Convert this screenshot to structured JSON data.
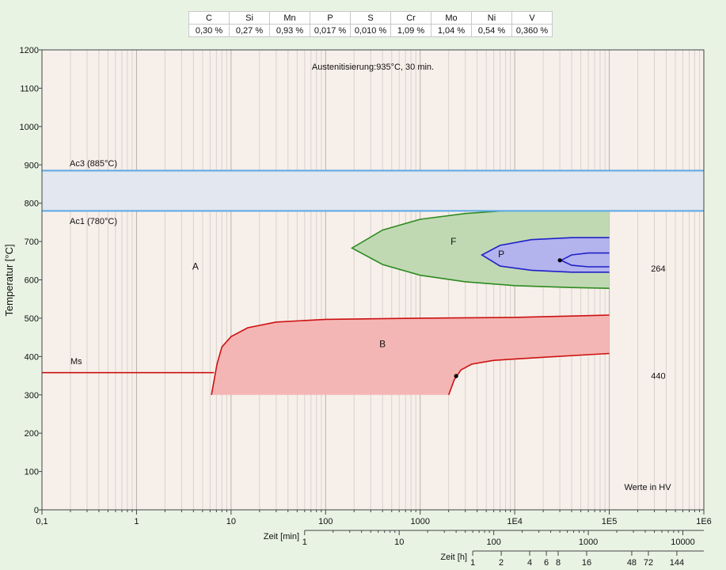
{
  "composition": {
    "elements": [
      "C",
      "Si",
      "Mn",
      "P",
      "S",
      "Cr",
      "Mo",
      "Ni",
      "V"
    ],
    "values": [
      "0,30 %",
      "0,27 %",
      "0,93 %",
      "0,017 %",
      "0,010 %",
      "1,09 %",
      "1,04 %",
      "0,54 %",
      "0,360 %"
    ]
  },
  "chart_data": {
    "type": "line",
    "title": "Austenitisierung:935°C, 30 min.",
    "ylabel": "Temperatur [°C]",
    "ylim": [
      0,
      1200
    ],
    "yticks": [
      "0",
      "100",
      "200",
      "300",
      "400",
      "500",
      "600",
      "700",
      "800",
      "900",
      "1000",
      "1100",
      "1200"
    ],
    "xscale": "log",
    "xlim": [
      0.1,
      1000000
    ],
    "xticks": [
      {
        "v": 0.1,
        "label": "0,1"
      },
      {
        "v": 1,
        "label": "1"
      },
      {
        "v": 10,
        "label": "10"
      },
      {
        "v": 100,
        "label": "100"
      },
      {
        "v": 1000,
        "label": "1000"
      },
      {
        "v": 10000,
        "label": "1E4"
      },
      {
        "v": 100000,
        "label": "1E5"
      },
      {
        "v": 1000000,
        "label": "1E6"
      }
    ],
    "min_axis": {
      "label": "Zeit [min]",
      "ticks": [
        {
          "v": 1,
          "label": "1"
        },
        {
          "v": 10,
          "label": "10"
        },
        {
          "v": 100,
          "label": "100"
        },
        {
          "v": 1000,
          "label": "1000"
        },
        {
          "v": 10000,
          "label": "10000"
        }
      ]
    },
    "hour_axis": {
      "label": "Zeit [h]",
      "ticks": [
        {
          "v": 1,
          "label": "1"
        },
        {
          "v": 2,
          "label": "2"
        },
        {
          "v": 4,
          "label": "4"
        },
        {
          "v": 6,
          "label": "6"
        },
        {
          "v": 8,
          "label": "8"
        },
        {
          "v": 16,
          "label": "16"
        },
        {
          "v": 48,
          "label": "48"
        },
        {
          "v": 72,
          "label": "72"
        },
        {
          "v": 144,
          "label": "144"
        }
      ]
    },
    "lines": {
      "ac3": {
        "label": "Ac3 (885°C)",
        "temp": 885
      },
      "ac1": {
        "label": "Ac1 (780°C)",
        "temp": 780
      },
      "ms": {
        "label": "Ms",
        "temp": 358
      }
    },
    "regions": {
      "A": {
        "label": "A",
        "x": 4.2,
        "y": 635
      },
      "F": {
        "label": "F",
        "x": 2250,
        "y": 700
      },
      "P": {
        "label": "P",
        "x": 7200,
        "y": 667
      },
      "B": {
        "label": "B",
        "x": 400,
        "y": 433
      }
    },
    "ferrite": {
      "color": "#2e8b20",
      "fill": "#c0d9b3",
      "upper": [
        [
          190,
          683
        ],
        [
          400,
          730
        ],
        [
          1000,
          758
        ],
        [
          3000,
          773
        ],
        [
          10000,
          782
        ],
        [
          40000,
          787
        ],
        [
          100000,
          788
        ]
      ],
      "lower": [
        [
          190,
          683
        ],
        [
          400,
          640
        ],
        [
          1000,
          612
        ],
        [
          3000,
          595
        ],
        [
          10000,
          585
        ],
        [
          40000,
          580
        ],
        [
          100000,
          578
        ]
      ]
    },
    "pearlite": {
      "color": "#2020c8",
      "fill": "#b3b3ee",
      "outer_upper": [
        [
          4500,
          665
        ],
        [
          7000,
          690
        ],
        [
          15000,
          705
        ],
        [
          40000,
          710
        ],
        [
          100000,
          710
        ]
      ],
      "outer_lower": [
        [
          4500,
          665
        ],
        [
          7000,
          636
        ],
        [
          15000,
          625
        ],
        [
          40000,
          620
        ],
        [
          100000,
          620
        ]
      ],
      "inner_upper": [
        [
          31000,
          651
        ],
        [
          40000,
          665
        ],
        [
          60000,
          670
        ],
        [
          100000,
          670
        ]
      ],
      "inner_lower": [
        [
          31000,
          651
        ],
        [
          40000,
          638
        ],
        [
          60000,
          634
        ],
        [
          100000,
          634
        ]
      ]
    },
    "bainite": {
      "color": "#cc1111",
      "fill": "#f4b6b4",
      "start": [
        [
          6.2,
          300
        ],
        [
          7.1,
          380
        ],
        [
          8.0,
          425
        ],
        [
          10,
          452
        ],
        [
          15,
          475
        ],
        [
          30,
          490
        ],
        [
          100,
          497
        ],
        [
          1000,
          500
        ],
        [
          10000,
          502
        ],
        [
          100000,
          508
        ]
      ],
      "finish": [
        [
          2000,
          300
        ],
        [
          2300,
          340
        ],
        [
          2700,
          365
        ],
        [
          3500,
          380
        ],
        [
          6000,
          390
        ],
        [
          20000,
          398
        ],
        [
          100000,
          408
        ]
      ]
    },
    "points": [
      {
        "x": 2400,
        "y": 349
      },
      {
        "x": 30000,
        "y": 651
      }
    ],
    "hardness": [
      {
        "label": "264",
        "x": 400000,
        "y": 630
      },
      {
        "label": "440",
        "x": 400000,
        "y": 350
      }
    ],
    "units_note": "Werte in HV"
  }
}
